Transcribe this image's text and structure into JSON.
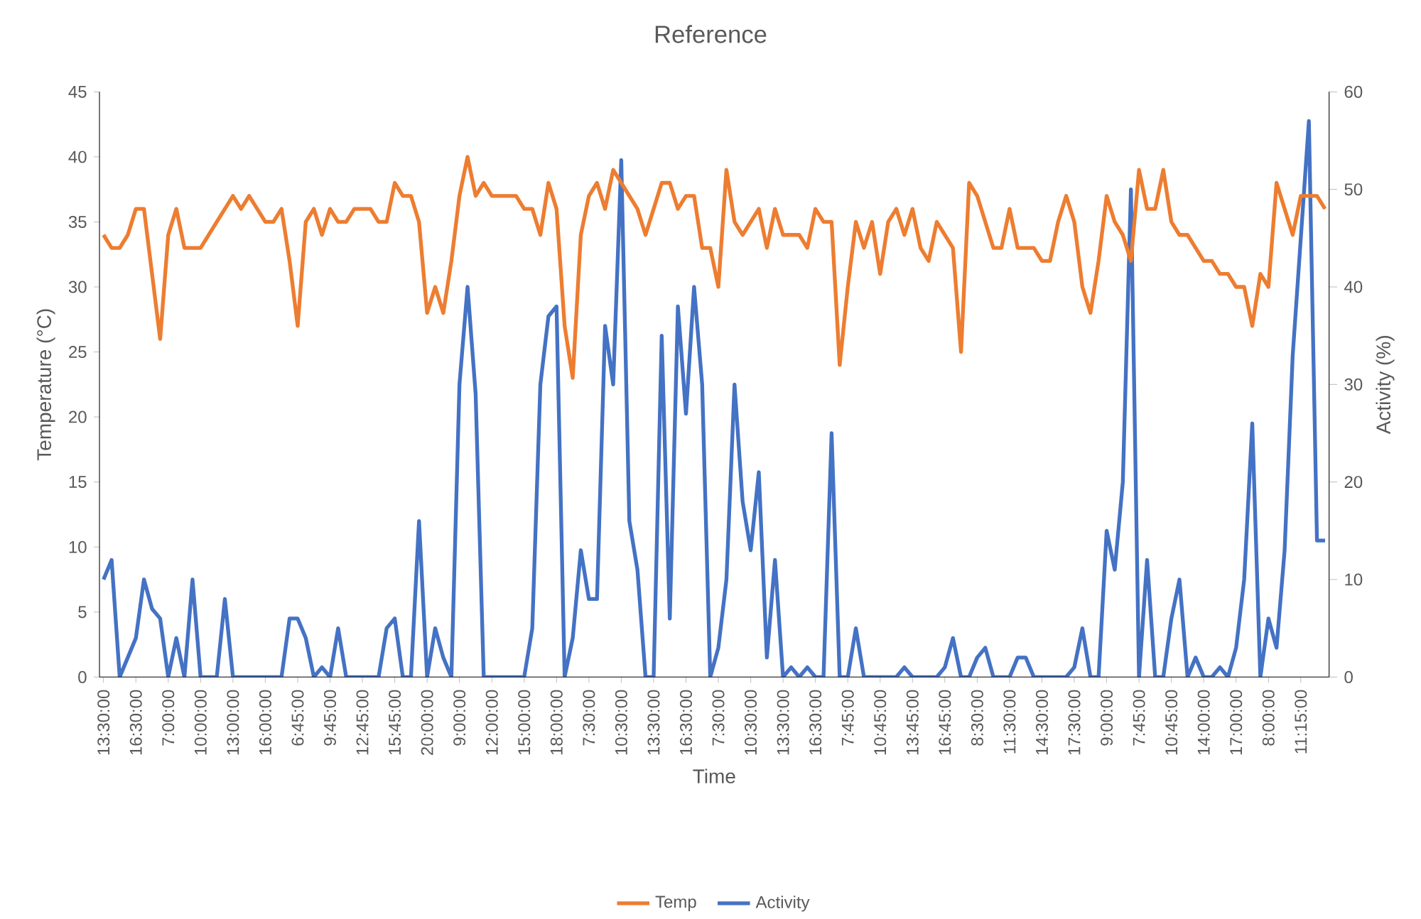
{
  "chart_data": {
    "type": "line",
    "title": "Reference",
    "xlabel": "Time",
    "ylabel": "Temperature (°C)",
    "y2label": "Activity (%)",
    "categories": [
      "13:30:00",
      null,
      null,
      null,
      "16:30:00",
      null,
      null,
      null,
      "7:00:00",
      null,
      null,
      null,
      "10:00:00",
      null,
      null,
      null,
      "13:00:00",
      null,
      null,
      null,
      "16:00:00",
      null,
      null,
      null,
      "6:45:00",
      null,
      null,
      null,
      "9:45:00",
      null,
      null,
      null,
      "12:45:00",
      null,
      null,
      null,
      "15:45:00",
      null,
      null,
      null,
      "20:00:00",
      null,
      null,
      null,
      "9:00:00",
      null,
      null,
      null,
      "12:00:00",
      null,
      null,
      null,
      "15:00:00",
      null,
      null,
      null,
      "18:00:00",
      null,
      null,
      null,
      "7:30:00",
      null,
      null,
      null,
      "10:30:00",
      null,
      null,
      null,
      "13:30:00",
      null,
      null,
      null,
      "16:30:00",
      null,
      null,
      null,
      "7:30:00",
      null,
      null,
      null,
      "10:30:00",
      null,
      null,
      null,
      "13:30:00",
      null,
      null,
      null,
      "16:30:00",
      null,
      null,
      null,
      "7:45:00",
      null,
      null,
      null,
      "10:45:00",
      null,
      null,
      null,
      "13:45:00",
      null,
      null,
      null,
      "16:45:00",
      null,
      null,
      null,
      "8:30:00",
      null,
      null,
      null,
      "11:30:00",
      null,
      null,
      null,
      "14:30:00",
      null,
      null,
      null,
      "17:30:00",
      null,
      null,
      null,
      "9:00:00",
      null,
      null,
      null,
      "7:45:00",
      null,
      null,
      null,
      "10:45:00",
      null,
      null,
      null,
      "14:00:00",
      null,
      null,
      null,
      "17:00:00",
      null,
      null,
      null,
      "8:00:00",
      null,
      null,
      null,
      "11:15:00",
      null,
      null,
      null
    ],
    "series": [
      {
        "name": "Temp",
        "color": "#ed7d31",
        "values": [
          34,
          33,
          33,
          34,
          36,
          36,
          31,
          26,
          34,
          36,
          33,
          33,
          33,
          34,
          35,
          36,
          37,
          36,
          37,
          36,
          35,
          35,
          36,
          32,
          27,
          35,
          36,
          34,
          36,
          35,
          35,
          36,
          36,
          36,
          35,
          35,
          38,
          37,
          37,
          35,
          28,
          30,
          28,
          32,
          37,
          40,
          37,
          38,
          37,
          37,
          37,
          37,
          36,
          36,
          34,
          38,
          36,
          27,
          23,
          34,
          37,
          38,
          36,
          39,
          38,
          37,
          36,
          34,
          36,
          38,
          38,
          36,
          37,
          37,
          33,
          33,
          30,
          39,
          35,
          34,
          35,
          36,
          33,
          36,
          34,
          34,
          34,
          33,
          36,
          35,
          35,
          24,
          30,
          35,
          33,
          35,
          31,
          35,
          36,
          34,
          36,
          33,
          32,
          35,
          34,
          33,
          25,
          38,
          37,
          35,
          33,
          33,
          36,
          33,
          33,
          33,
          32,
          32,
          35,
          37,
          35,
          30,
          28,
          32,
          37,
          35,
          34,
          32,
          39,
          36,
          36,
          39,
          35,
          34,
          34,
          33,
          32,
          32,
          31,
          31,
          30,
          30,
          27,
          31,
          30,
          38,
          36,
          34,
          37,
          37,
          37,
          36
        ]
      },
      {
        "name": "Activity",
        "color": "#4472c4",
        "axis": "y2",
        "values": [
          10,
          12,
          0,
          2,
          4,
          10,
          7,
          6,
          0,
          4,
          0,
          10,
          0,
          0,
          0,
          8,
          0,
          0,
          0,
          0,
          0,
          0,
          0,
          6,
          6,
          4,
          0,
          1,
          0,
          5,
          0,
          0,
          0,
          0,
          0,
          5,
          6,
          0,
          0,
          16,
          0,
          5,
          2,
          0,
          30,
          40,
          29,
          0,
          0,
          0,
          0,
          0,
          0,
          5,
          30,
          37,
          38,
          0,
          4,
          13,
          8,
          8,
          36,
          30,
          53,
          16,
          11,
          0,
          0,
          35,
          6,
          38,
          27,
          40,
          30,
          0,
          3,
          10,
          30,
          18,
          13,
          21,
          2,
          12,
          0,
          1,
          0,
          1,
          0,
          0,
          25,
          0,
          0,
          5,
          0,
          0,
          0,
          0,
          0,
          1,
          0,
          0,
          0,
          0,
          1,
          4,
          0,
          0,
          2,
          3,
          0,
          0,
          0,
          2,
          2,
          0,
          0,
          0,
          0,
          0,
          1,
          5,
          0,
          0,
          15,
          11,
          20,
          50,
          0,
          12,
          0,
          0,
          6,
          10,
          0,
          2,
          0,
          0,
          1,
          0,
          3,
          10,
          26,
          0,
          6,
          3,
          13,
          33,
          45,
          57,
          14,
          14
        ]
      }
    ],
    "ylim": [
      0,
      45
    ],
    "yticks": [
      0,
      5,
      10,
      15,
      20,
      25,
      30,
      35,
      40,
      45
    ],
    "y2lim": [
      0,
      60
    ],
    "y2ticks": [
      0,
      10,
      20,
      30,
      40,
      50,
      60
    ],
    "legend": "bottom",
    "marker": "none",
    "line_style": "solid"
  }
}
